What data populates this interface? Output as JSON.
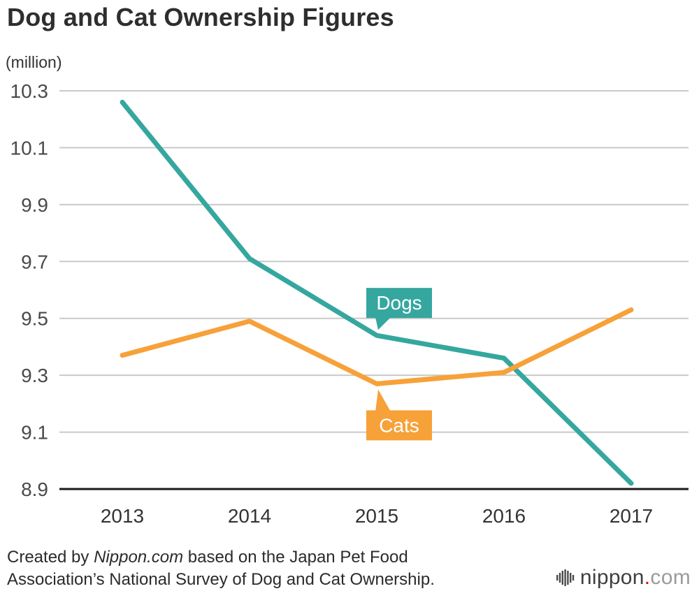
{
  "page": {
    "title": "Dog and Cat Ownership Figures",
    "unit_label": "(million)"
  },
  "chart_data": {
    "type": "line",
    "x": [
      "2013",
      "2014",
      "2015",
      "2016",
      "2017"
    ],
    "series": [
      {
        "name": "Dogs",
        "color": "#35A79F",
        "values": [
          10.26,
          9.71,
          9.44,
          9.36,
          8.92
        ]
      },
      {
        "name": "Cats",
        "color": "#F7A139",
        "values": [
          9.37,
          9.49,
          9.27,
          9.31,
          9.53
        ]
      }
    ],
    "title": "Dog and Cat Ownership Figures",
    "xlabel": "",
    "ylabel": "(million)",
    "ylim": [
      8.9,
      10.3
    ],
    "yticks": [
      10.3,
      10.1,
      9.9,
      9.7,
      9.5,
      9.3,
      9.1,
      8.9
    ],
    "grid": "horizontal",
    "grid_color": "#c9c9c9",
    "axis_color": "#1a1a1a",
    "tick_label_color": "#4a4a4a",
    "legend": "inline-callouts"
  },
  "annotations": {
    "dogs_label": "Dogs",
    "cats_label": "Cats"
  },
  "footer": {
    "credit_prefix": "Created by ",
    "credit_source": "Nippon.com",
    "credit_suffix": " based on the Japan Pet Food Association’s National Survey of Dog and Cat Ownership.",
    "logo_text_main": "nippon",
    "logo_text_dot": ".",
    "logo_text_tld": "com"
  }
}
